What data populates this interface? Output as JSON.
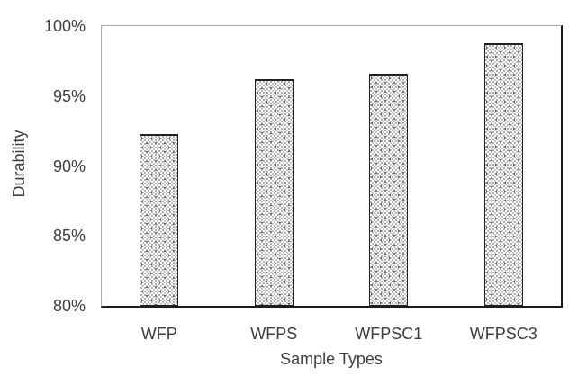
{
  "chart_data": {
    "type": "bar",
    "title": "",
    "categories": [
      "WFP",
      "WFPS",
      "WFPSC1",
      "WFPSC3"
    ],
    "values": [
      92.3,
      96.2,
      96.6,
      98.8
    ],
    "xlabel": "Sample Types",
    "ylabel": "Durability",
    "ylim": [
      80,
      100
    ],
    "ytick_step": 5,
    "ytick_labels": [
      "80%",
      "85%",
      "90%",
      "95%",
      "100%"
    ],
    "grid": false,
    "legend": null,
    "style": {
      "bar_fill": "light dotted-hatch pattern on white",
      "bar_border_color": "#222222",
      "axis_color_bottom_right": "#1c1c1c",
      "axis_color_top_left": "#a9a9a9",
      "text_color": "#3d3d3d",
      "background": "#ffffff"
    }
  }
}
